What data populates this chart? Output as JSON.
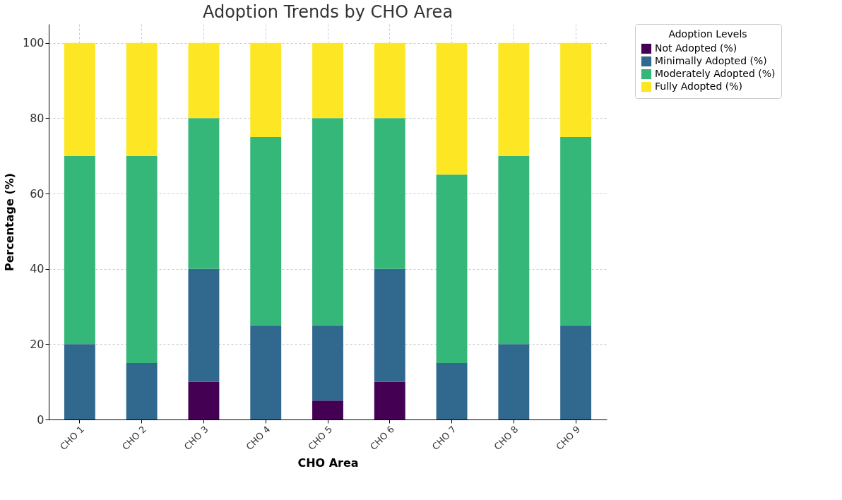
{
  "chart_data": {
    "type": "bar",
    "title": "Adoption Trends by CHO Area",
    "xlabel": "CHO Area",
    "ylabel": "Percentage (%)",
    "legend_title": "Adoption Levels",
    "categories": [
      "CHO 1",
      "CHO 2",
      "CHO 3",
      "CHO 4",
      "CHO 5",
      "CHO 6",
      "CHO 7",
      "CHO 8",
      "CHO 9"
    ],
    "stacked": true,
    "ylim": [
      0,
      105
    ],
    "yticks": [
      0,
      20,
      40,
      60,
      80,
      100
    ],
    "grid": true,
    "legend": "top right",
    "series": [
      {
        "name": "Not Adopted (%)",
        "color": "#440154",
        "values": [
          0,
          0,
          10,
          0,
          5,
          10,
          0,
          0,
          0
        ]
      },
      {
        "name": "Minimally Adopted (%)",
        "color": "#31688e",
        "values": [
          20,
          15,
          30,
          25,
          20,
          30,
          15,
          20,
          25
        ]
      },
      {
        "name": "Moderately Adopted (%)",
        "color": "#35b779",
        "values": [
          50,
          55,
          40,
          50,
          55,
          40,
          50,
          50,
          50
        ]
      },
      {
        "name": "Fully Adopted (%)",
        "color": "#fde725",
        "values": [
          30,
          30,
          20,
          25,
          20,
          20,
          35,
          30,
          25
        ]
      }
    ]
  }
}
